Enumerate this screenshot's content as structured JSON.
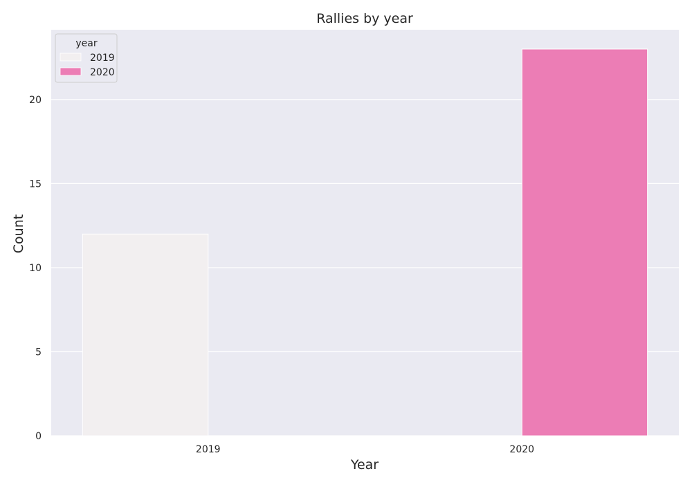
{
  "chart_data": {
    "type": "bar",
    "title": "Rallies by year",
    "xlabel": "Year",
    "ylabel": "Count",
    "categories": [
      "2019",
      "2020"
    ],
    "series": [
      {
        "name": "2019",
        "color": "#f2eff0",
        "values": [
          12,
          0
        ]
      },
      {
        "name": "2020",
        "color": "#ec7db5",
        "values": [
          0,
          23
        ]
      }
    ],
    "ylim": [
      0,
      24.15
    ],
    "yticks": [
      0,
      5,
      10,
      15,
      20
    ],
    "grid": true,
    "legend": {
      "title": "year",
      "placement": "top-left"
    },
    "background_color": "#eaeaf2"
  }
}
